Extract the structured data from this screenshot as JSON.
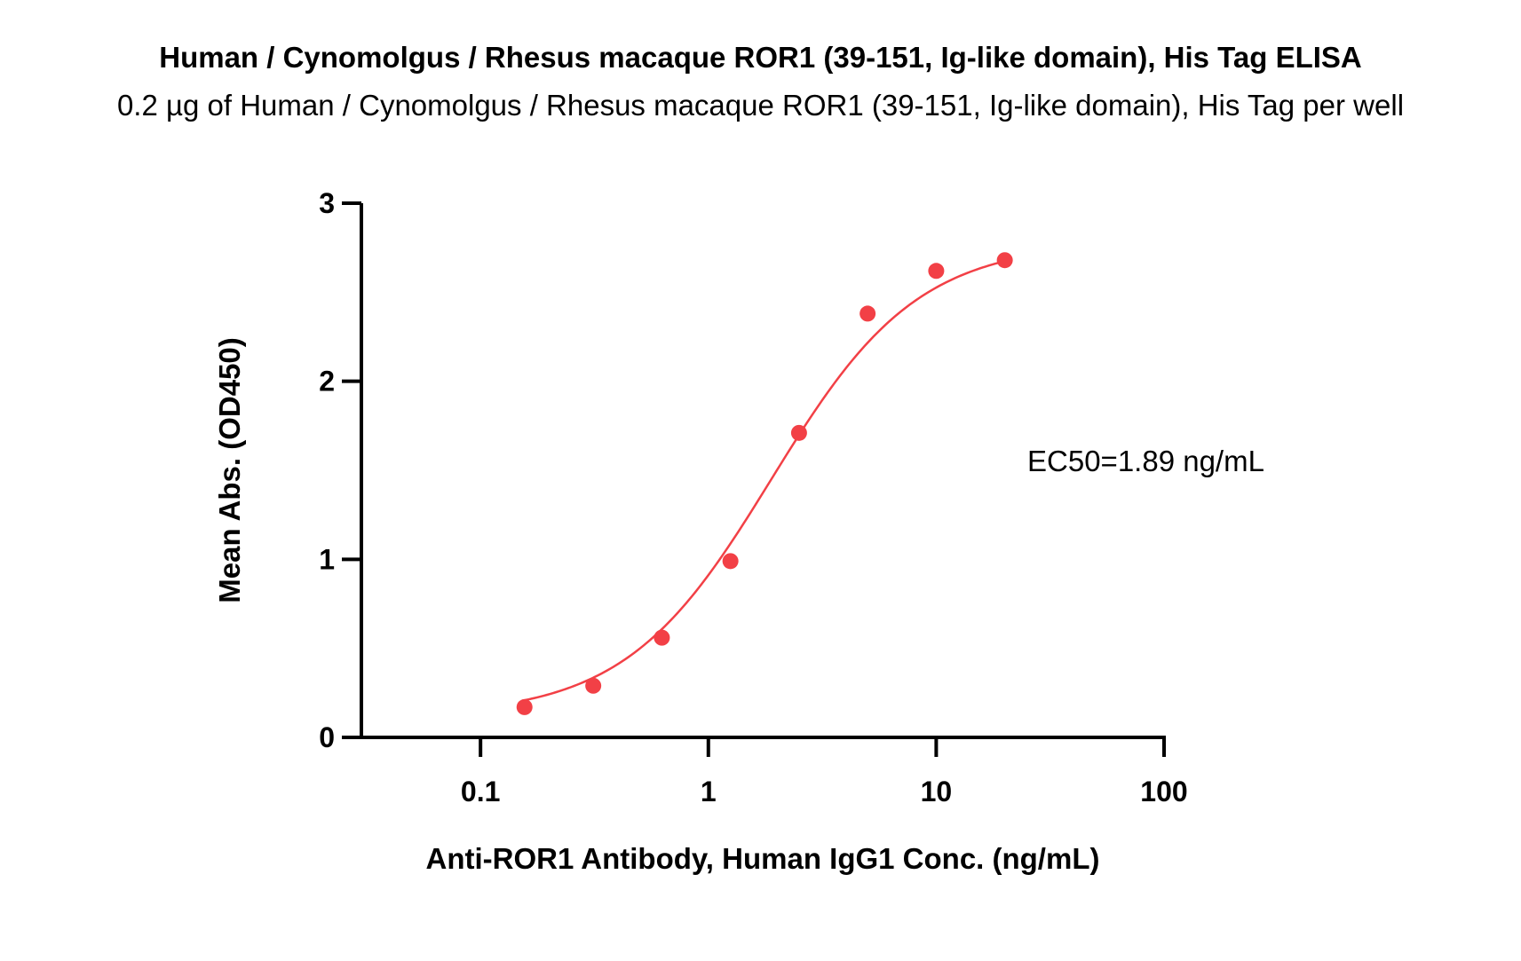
{
  "chart_data": {
    "type": "scatter",
    "title": "Human / Cynomolgus / Rhesus macaque ROR1 (39-151, Ig-like domain), His Tag ELISA",
    "subtitle": "0.2 µg of Human / Cynomolgus / Rhesus macaque ROR1 (39-151, Ig-like domain), His Tag per well",
    "xlabel": "Anti-ROR1 Antibody, Human IgG1 Conc. (ng/mL)",
    "ylabel": "Mean Abs. (OD450)",
    "xscale": "log",
    "xlim": [
      0.03,
      100
    ],
    "ylim": [
      0,
      3
    ],
    "xticks": [
      0.1,
      1,
      10,
      100
    ],
    "xtick_labels": [
      "0.1",
      "1",
      "10",
      "100"
    ],
    "yticks": [
      0,
      1,
      2,
      3
    ],
    "ytick_labels": [
      "0",
      "1",
      "2",
      "3"
    ],
    "grid": false,
    "series": [
      {
        "x": [
          0.156,
          0.3125,
          0.625,
          1.25,
          2.5,
          5,
          10,
          20
        ],
        "y": [
          0.17,
          0.29,
          0.56,
          0.99,
          1.71,
          2.38,
          2.62,
          2.68
        ],
        "fit": "4PL",
        "color": "#f24046"
      }
    ],
    "annotations": [
      "EC50=1.89 ng/mL"
    ]
  }
}
